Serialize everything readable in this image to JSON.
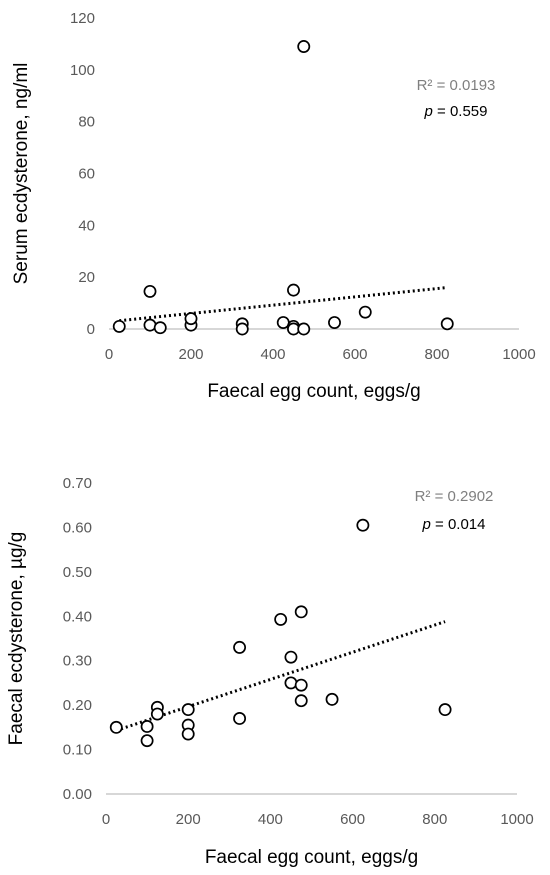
{
  "chart_data": [
    {
      "type": "scatter",
      "xlabel": "Faecal egg count, eggs/g",
      "ylabel": "Serum ecdysterone, ng/ml",
      "xlim": [
        0,
        1000
      ],
      "ylim": [
        0,
        120
      ],
      "x_ticks": [
        "0",
        "200",
        "400",
        "600",
        "800",
        "1000"
      ],
      "y_ticks": [
        "0",
        "20",
        "40",
        "60",
        "80",
        "100",
        "120"
      ],
      "grid": false,
      "points": [
        {
          "x": 25,
          "y": 1
        },
        {
          "x": 100,
          "y": 14.5
        },
        {
          "x": 100,
          "y": 1.5
        },
        {
          "x": 125,
          "y": 0.5
        },
        {
          "x": 200,
          "y": 1.5
        },
        {
          "x": 200,
          "y": 4
        },
        {
          "x": 325,
          "y": 2
        },
        {
          "x": 325,
          "y": 0
        },
        {
          "x": 425,
          "y": 2.5
        },
        {
          "x": 450,
          "y": 15
        },
        {
          "x": 450,
          "y": 1
        },
        {
          "x": 450,
          "y": 0
        },
        {
          "x": 475,
          "y": 109
        },
        {
          "x": 475,
          "y": 0
        },
        {
          "x": 550,
          "y": 2.5
        },
        {
          "x": 625,
          "y": 6.5
        },
        {
          "x": 825,
          "y": 2
        }
      ],
      "trendline": {
        "style": "dotted",
        "x": [
          25,
          825
        ],
        "y": [
          3.2,
          16
        ]
      },
      "r2_text": "R² = 0.0193",
      "p_label": "p",
      "p_value_text": " = 0.559"
    },
    {
      "type": "scatter",
      "xlabel": "Faecal egg count, eggs/g",
      "ylabel": "Faecal ecdysterone, µg/g",
      "xlim": [
        0,
        1000
      ],
      "ylim": [
        0,
        0.7
      ],
      "x_ticks": [
        "0",
        "200",
        "400",
        "600",
        "800",
        "1000"
      ],
      "y_ticks": [
        "0.00",
        "0.10",
        "0.20",
        "0.30",
        "0.40",
        "0.50",
        "0.60",
        "0.70"
      ],
      "grid": false,
      "points": [
        {
          "x": 25,
          "y": 0.15
        },
        {
          "x": 100,
          "y": 0.152
        },
        {
          "x": 100,
          "y": 0.12
        },
        {
          "x": 125,
          "y": 0.195
        },
        {
          "x": 125,
          "y": 0.18
        },
        {
          "x": 200,
          "y": 0.19
        },
        {
          "x": 200,
          "y": 0.155
        },
        {
          "x": 200,
          "y": 0.135
        },
        {
          "x": 325,
          "y": 0.33
        },
        {
          "x": 325,
          "y": 0.17
        },
        {
          "x": 425,
          "y": 0.393
        },
        {
          "x": 450,
          "y": 0.308
        },
        {
          "x": 450,
          "y": 0.25
        },
        {
          "x": 475,
          "y": 0.41
        },
        {
          "x": 475,
          "y": 0.245
        },
        {
          "x": 475,
          "y": 0.21
        },
        {
          "x": 550,
          "y": 0.213
        },
        {
          "x": 625,
          "y": 0.605
        },
        {
          "x": 825,
          "y": 0.19
        }
      ],
      "trendline": {
        "style": "dotted",
        "x": [
          25,
          825
        ],
        "y": [
          0.143,
          0.388
        ]
      },
      "r2_text": "R² = 0.2902",
      "p_label": "p",
      "p_value_text": " = 0.014"
    }
  ]
}
